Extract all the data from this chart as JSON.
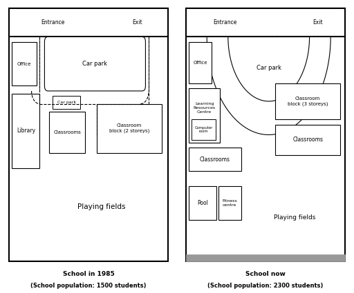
{
  "fig_width": 5.12,
  "fig_height": 4.25,
  "dpi": 100,
  "bg_color": "#ffffff",
  "playing_fields_color": "#c0c0c0",
  "left_title": "School in 1985",
  "left_subtitle": "(School population: 1500 students)",
  "right_title": "School now",
  "right_subtitle": "(School population: 2300 students)"
}
